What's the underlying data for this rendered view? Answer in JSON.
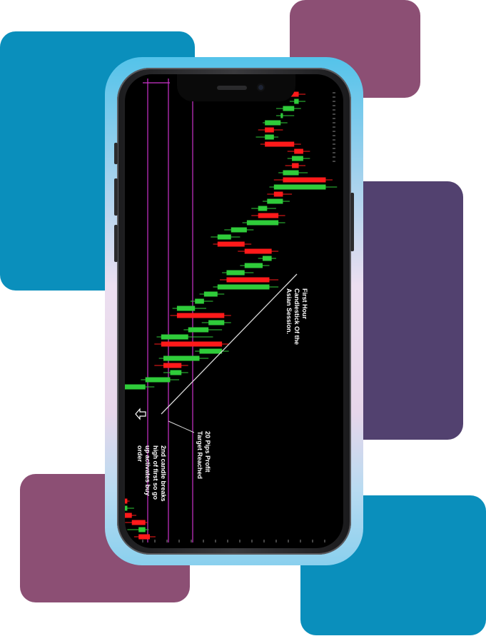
{
  "colors": {
    "teal": "#0a8fbc",
    "plum": "#8c4f74",
    "purple": "#52416f",
    "bull": "#2fcc3a",
    "bear": "#ff1a1a",
    "marker_line": "#cc33cc",
    "trend_line": "#d9d9d9"
  },
  "device": {
    "type": "smartphone",
    "orientation": "portrait"
  },
  "annotations": {
    "first_hour": "First Hour\nCandlestick Of the\nAsian Session.",
    "target": "20 Pips Profit\nTarget Reached",
    "second_candle": "2nd candle breaks\nhigh of first so go\nup activates buy\norder"
  },
  "icons": {
    "entry_arrow": "outlined-arrow-icon"
  },
  "chart_data": {
    "type": "candlestick",
    "rotation": "rotated 90 degrees clockwise",
    "up_color": "#2fcc3a",
    "down_color": "#ff1a1a",
    "series": [
      {
        "o": 0,
        "c": -10,
        "h": 5,
        "l": -14
      },
      {
        "o": -10,
        "c": -4,
        "h": -1,
        "l": -20
      },
      {
        "o": -4,
        "c": -16,
        "h": -2,
        "l": -22
      },
      {
        "o": -16,
        "c": -28,
        "h": -12,
        "l": -40
      },
      {
        "o": -28,
        "c": -20,
        "h": -14,
        "l": -32
      },
      {
        "o": -20,
        "c": -34,
        "h": -18,
        "l": -38
      },
      {
        "o": -34,
        "c": -50,
        "h": -30,
        "l": -56
      },
      {
        "o": -50,
        "c": -40,
        "h": -36,
        "l": -54
      },
      {
        "o": -40,
        "c": -150,
        "h": -36,
        "l": -200
      },
      {
        "o": -150,
        "c": -140,
        "h": -132,
        "l": -158
      },
      {
        "o": -140,
        "c": -120,
        "h": -110,
        "l": -148
      },
      {
        "o": -120,
        "c": -132,
        "h": -106,
        "l": -140
      },
      {
        "o": -132,
        "c": -116,
        "h": -104,
        "l": -138
      },
      {
        "o": -116,
        "c": -128,
        "h": -108,
        "l": -132
      },
      {
        "o": -128,
        "c": -108,
        "h": -98,
        "l": -134
      },
      {
        "o": -108,
        "c": -118,
        "h": -102,
        "l": -124
      },
      {
        "o": -118,
        "c": -104,
        "h": -96,
        "l": -122
      },
      {
        "o": -104,
        "c": -110,
        "h": -100,
        "l": -116
      },
      {
        "o": -110,
        "c": -100,
        "h": -94,
        "l": -118
      },
      {
        "o": -100,
        "c": -96,
        "h": -90,
        "l": -104
      },
      {
        "o": -96,
        "c": -36,
        "h": -30,
        "l": -110
      },
      {
        "o": -36,
        "c": -4,
        "h": 4,
        "l": -42
      },
      {
        "o": -4,
        "c": 18,
        "h": 26,
        "l": -8
      },
      {
        "o": 18,
        "c": 28,
        "h": 34,
        "l": 12
      },
      {
        "o": 28,
        "c": 12,
        "h": 34,
        "l": 4
      },
      {
        "o": 12,
        "c": 44,
        "h": 52,
        "l": 8
      },
      {
        "o": 44,
        "c": 64,
        "h": 70,
        "l": 40
      },
      {
        "o": 64,
        "c": 10,
        "h": 70,
        "l": 4
      },
      {
        "o": 10,
        "c": 34,
        "h": 56,
        "l": 6
      },
      {
        "o": 34,
        "c": 52,
        "h": 64,
        "l": 30
      },
      {
        "o": 52,
        "c": 66,
        "h": 72,
        "l": 46
      },
      {
        "o": 66,
        "c": 24,
        "h": 72,
        "l": 18
      },
      {
        "o": 24,
        "c": 40,
        "h": 50,
        "l": 20
      },
      {
        "o": 40,
        "c": 48,
        "h": 56,
        "l": 36
      },
      {
        "o": 48,
        "c": 60,
        "h": 66,
        "l": 44
      },
      {
        "o": 60,
        "c": 106,
        "h": 114,
        "l": 56
      },
      {
        "o": 106,
        "c": 68,
        "h": 114,
        "l": 62
      },
      {
        "o": 68,
        "c": 84,
        "h": 92,
        "l": 64
      },
      {
        "o": 84,
        "c": 100,
        "h": 106,
        "l": 80
      },
      {
        "o": 100,
        "c": 108,
        "h": 112,
        "l": 96
      },
      {
        "o": 108,
        "c": 84,
        "h": 114,
        "l": 78
      },
      {
        "o": 84,
        "c": 60,
        "h": 90,
        "l": 56
      },
      {
        "o": 60,
        "c": 72,
        "h": 80,
        "l": 54
      },
      {
        "o": 72,
        "c": 86,
        "h": 92,
        "l": 66
      },
      {
        "o": 86,
        "c": 114,
        "h": 120,
        "l": 82
      },
      {
        "o": 114,
        "c": 96,
        "h": 120,
        "l": 90
      },
      {
        "o": 96,
        "c": 104,
        "h": 112,
        "l": 90
      },
      {
        "o": 104,
        "c": 118,
        "h": 124,
        "l": 100
      },
      {
        "o": 118,
        "c": 110,
        "h": 126,
        "l": 104
      },
      {
        "o": 110,
        "c": 156,
        "h": 166,
        "l": 106
      },
      {
        "o": 156,
        "c": 118,
        "h": 162,
        "l": 110
      },
      {
        "o": 118,
        "c": 132,
        "h": 140,
        "l": 114
      },
      {
        "o": 132,
        "c": 126,
        "h": 138,
        "l": 120
      },
      {
        "o": 126,
        "c": 136,
        "h": 142,
        "l": 122
      },
      {
        "o": 136,
        "c": 128,
        "h": 142,
        "l": 122
      },
      {
        "o": 128,
        "c": 102,
        "h": 134,
        "l": 98
      },
      {
        "o": 102,
        "c": 110,
        "h": 114,
        "l": 94
      },
      {
        "o": 110,
        "c": 102,
        "h": 118,
        "l": 96
      },
      {
        "o": 102,
        "c": 116,
        "h": 122,
        "l": 100
      },
      {
        "o": 116,
        "c": 118,
        "h": 128,
        "l": 112
      },
      {
        "o": 118,
        "c": 128,
        "h": 134,
        "l": 112
      },
      {
        "o": 128,
        "c": 132,
        "h": 138,
        "l": 124
      },
      {
        "o": 132,
        "c": 120,
        "h": 138,
        "l": 116
      }
    ]
  }
}
